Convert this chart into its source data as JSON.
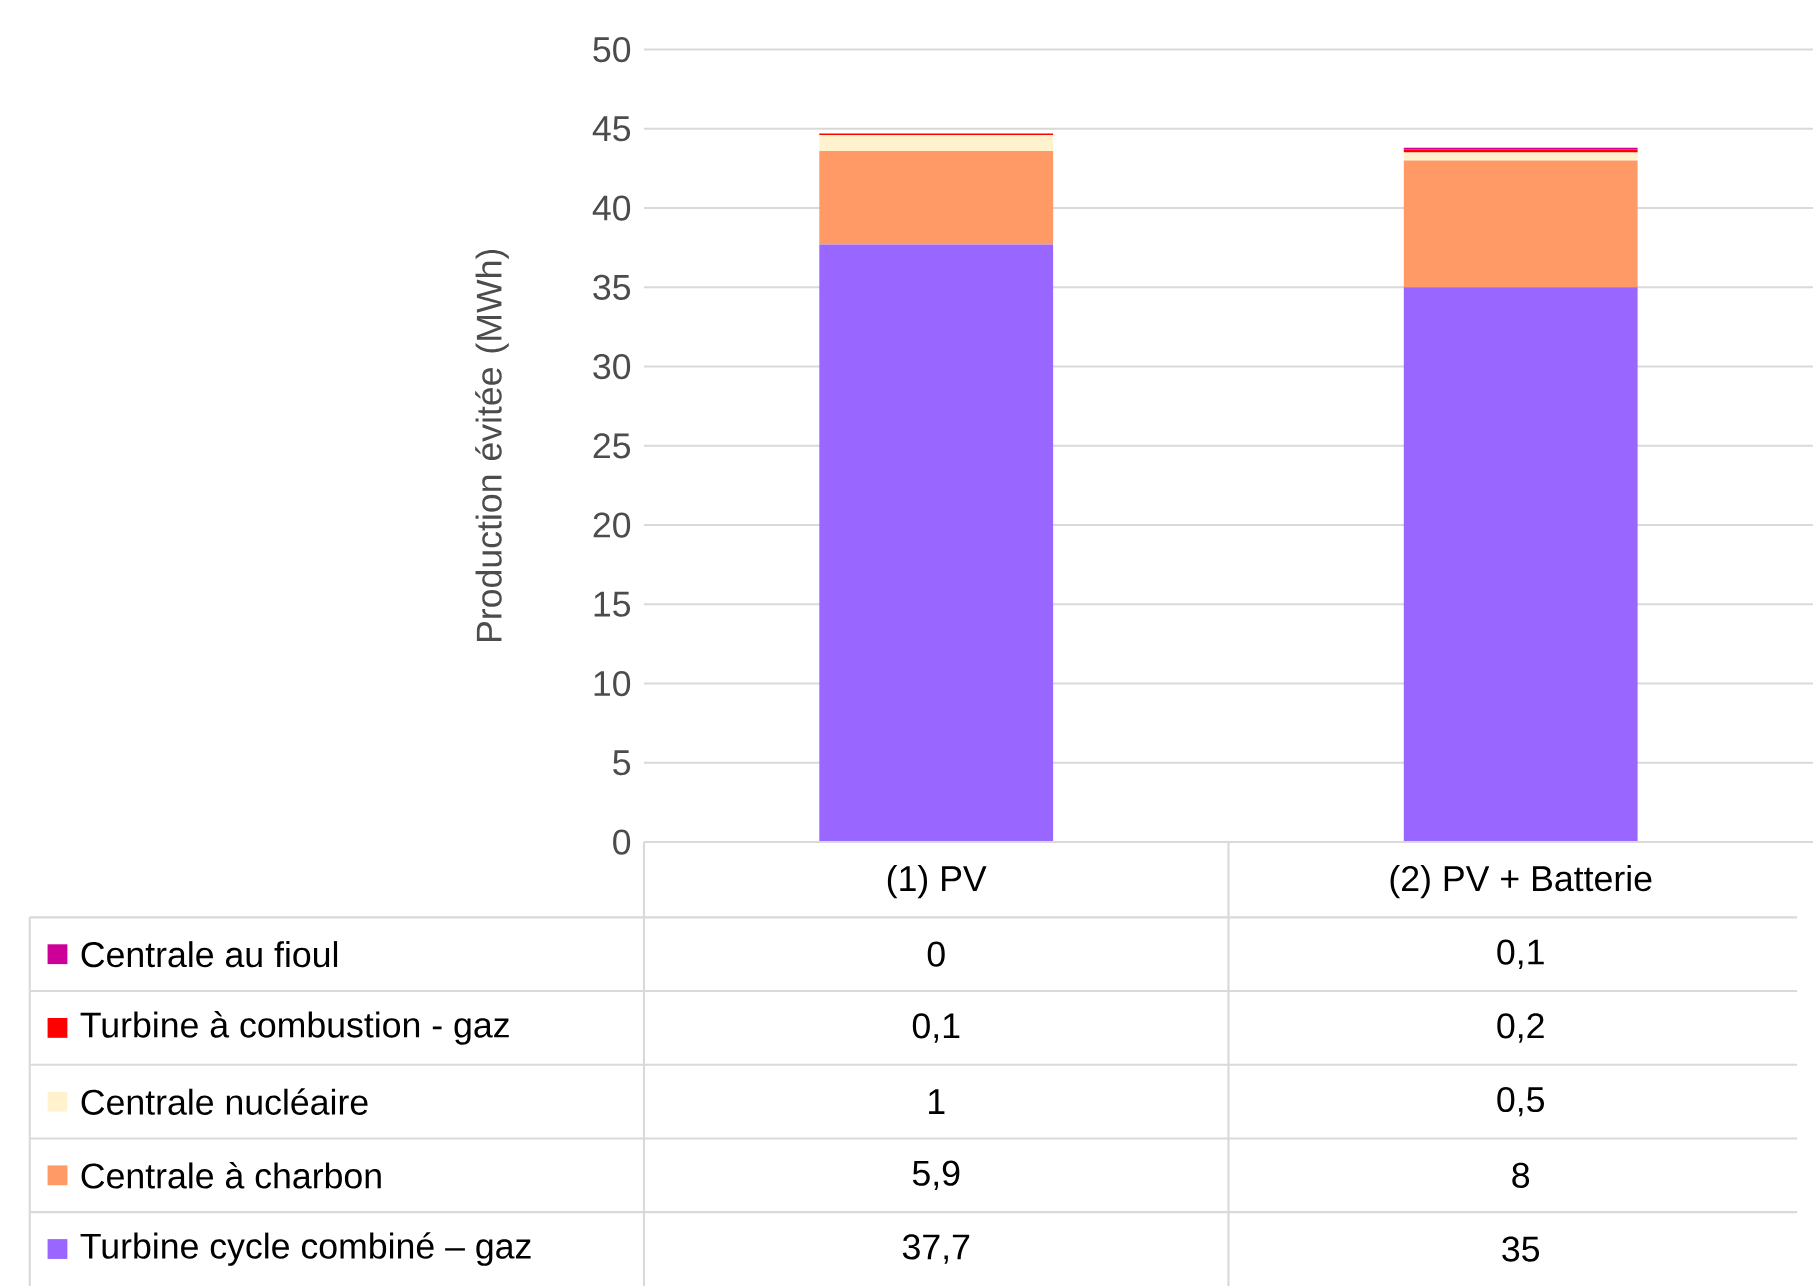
{
  "chart_data": {
    "type": "bar",
    "stacked": true,
    "ylabel": "Production évitée (MWh)",
    "categories": [
      "(1) PV",
      "(2) PV + Batterie"
    ],
    "series": [
      {
        "name": "Turbine cycle combiné – gaz",
        "color": "#9966ff",
        "values": [
          37.7,
          35
        ],
        "value_labels": [
          "37,7",
          "35"
        ]
      },
      {
        "name": "Centrale à charbon",
        "color": "#ff9966",
        "values": [
          5.9,
          8
        ],
        "value_labels": [
          "5,9",
          "8"
        ]
      },
      {
        "name": "Centrale nucléaire",
        "color": "#fff2cc",
        "values": [
          1,
          0.5
        ],
        "value_labels": [
          "1",
          "0,5"
        ]
      },
      {
        "name": "Turbine à combustion - gaz",
        "color": "#ff0000",
        "values": [
          0.1,
          0.2
        ],
        "value_labels": [
          "0,1",
          "0,2"
        ]
      },
      {
        "name": "Centrale au fioul",
        "color": "#cc0099",
        "values": [
          0,
          0.1
        ],
        "value_labels": [
          "0",
          "0,1"
        ]
      }
    ],
    "ylim": [
      0,
      50
    ],
    "yticks": [
      0,
      5,
      10,
      15,
      20,
      25,
      30,
      35,
      40,
      45,
      50
    ],
    "grid": "y",
    "legend": "bottom"
  }
}
